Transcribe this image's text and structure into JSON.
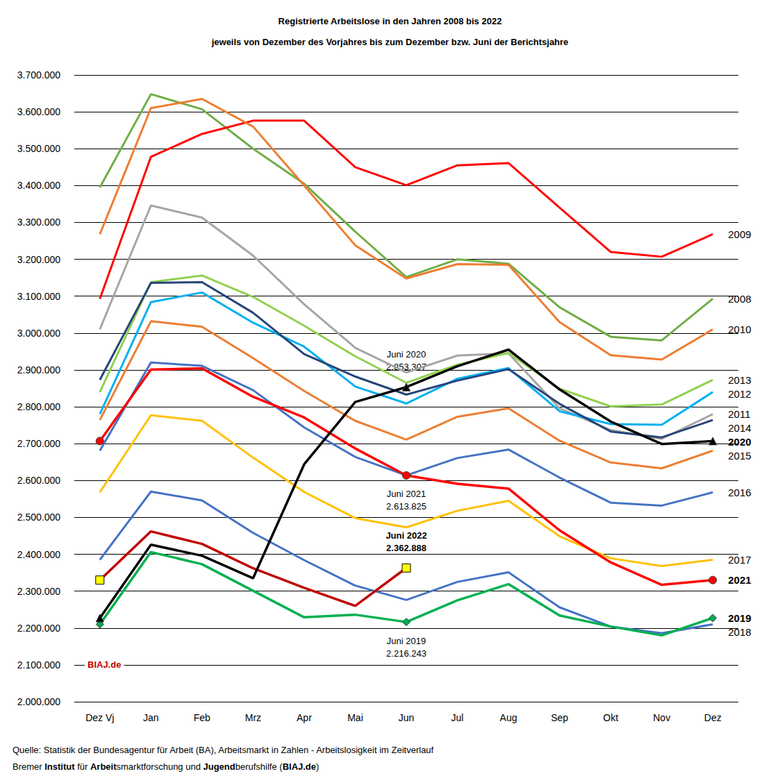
{
  "chart_data": {
    "type": "line",
    "title": [
      "Registrierte Arbeitslose in den Jahren 2008 bis 2022",
      "jeweils von Dezember des Vorjahres bis zum Dezember bzw. Juni der Berichtsjahre"
    ],
    "categories": [
      "Dez Vj",
      "Jan",
      "Feb",
      "Mrz",
      "Apr",
      "Mai",
      "Jun",
      "Jul",
      "Aug",
      "Sep",
      "Okt",
      "Nov",
      "Dez"
    ],
    "ylim": [
      2000000,
      3700000
    ],
    "yticks": [
      {
        "value": 2000000,
        "label": "2.000.000"
      },
      {
        "value": 2100000,
        "label": "2.100.000"
      },
      {
        "value": 2200000,
        "label": "2.200.000"
      },
      {
        "value": 2300000,
        "label": "2.300.000"
      },
      {
        "value": 2400000,
        "label": "2.400.000"
      },
      {
        "value": 2500000,
        "label": "2.500.000"
      },
      {
        "value": 2600000,
        "label": "2.600.000"
      },
      {
        "value": 2700000,
        "label": "2.700.000"
      },
      {
        "value": 2800000,
        "label": "2.800.000"
      },
      {
        "value": 2900000,
        "label": "2.900.000"
      },
      {
        "value": 3000000,
        "label": "3.000.000"
      },
      {
        "value": 3100000,
        "label": "3.100.000"
      },
      {
        "value": 3200000,
        "label": "3.200.000"
      },
      {
        "value": 3300000,
        "label": "3.300.000"
      },
      {
        "value": 3400000,
        "label": "3.400.000"
      },
      {
        "value": 3500000,
        "label": "3.500.000"
      },
      {
        "value": 3600000,
        "label": "3.600.000"
      },
      {
        "value": 3700000,
        "label": "3.700.000"
      }
    ],
    "grid": true,
    "series": [
      {
        "name": "2008",
        "color": "#70ad47",
        "values": [
          3395000,
          3648000,
          3607000,
          3500000,
          3405000,
          3275000,
          3152000,
          3200000,
          3188000,
          3070000,
          2990000,
          2980000,
          3093000
        ]
      },
      {
        "name": "2009",
        "color": "#ff0000",
        "values": [
          3093000,
          3478000,
          3540000,
          3576000,
          3576000,
          3450000,
          3401000,
          3455000,
          3461000,
          3340000,
          3220000,
          3207000,
          3268000
        ]
      },
      {
        "name": "2010",
        "color": "#ed7d31",
        "values": [
          3268000,
          3610000,
          3635000,
          3560000,
          3400000,
          3238000,
          3148000,
          3187000,
          3185000,
          3030000,
          2940000,
          2928000,
          3010000
        ]
      },
      {
        "name": "2011",
        "color": "#a5a5a5",
        "values": [
          3010000,
          3346000,
          3313000,
          3210000,
          3078000,
          2960000,
          2893000,
          2939000,
          2945000,
          2796000,
          2737000,
          2713000,
          2780000
        ]
      },
      {
        "name": "2012",
        "color": "#00b0f0",
        "values": [
          2780000,
          3084000,
          3110000,
          3028000,
          2963000,
          2855000,
          2809000,
          2876000,
          2905000,
          2788000,
          2753000,
          2751000,
          2840000
        ]
      },
      {
        "name": "2013",
        "color": "#92d050",
        "values": [
          2840000,
          3138000,
          3156000,
          3098000,
          3020000,
          2937000,
          2865000,
          2914000,
          2946000,
          2849000,
          2801000,
          2806000,
          2873000
        ]
      },
      {
        "name": "2014",
        "color": "#264478",
        "values": [
          2873000,
          3136000,
          3138000,
          3055000,
          2943000,
          2882000,
          2833000,
          2871000,
          2902000,
          2808000,
          2733000,
          2717000,
          2764000
        ]
      },
      {
        "name": "2015",
        "color": "#ed7d31",
        "values": [
          2764000,
          3032000,
          3017000,
          2932000,
          2843000,
          2762000,
          2711000,
          2773000,
          2796000,
          2708000,
          2649000,
          2633000,
          2681000
        ]
      },
      {
        "name": "2016",
        "color": "#4472c4",
        "values": [
          2681000,
          2920000,
          2911000,
          2845000,
          2744000,
          2664000,
          2614000,
          2661000,
          2684000,
          2608000,
          2540000,
          2532000,
          2568000
        ]
      },
      {
        "name": "2017",
        "color": "#ffc000",
        "values": [
          2568000,
          2777000,
          2762000,
          2662000,
          2569000,
          2498000,
          2473000,
          2518000,
          2545000,
          2449000,
          2389000,
          2368000,
          2385000
        ]
      },
      {
        "name": "2018",
        "color": "#4472c4",
        "values": [
          2385000,
          2570000,
          2546000,
          2458000,
          2384000,
          2315000,
          2276000,
          2325000,
          2351000,
          2256000,
          2204000,
          2186000,
          2210000
        ]
      },
      {
        "name": "2019",
        "color": "#00b050",
        "marker": "diamond",
        "values": [
          2210000,
          2406000,
          2373000,
          2301000,
          2229000,
          2236000,
          2216243,
          2275000,
          2319000,
          2234000,
          2204000,
          2180000,
          2227000
        ]
      },
      {
        "name": "2022",
        "color": "#c00000",
        "marker": "square",
        "values": [
          2330000,
          2462000,
          2428000,
          2362000,
          2309000,
          2260000,
          2362888,
          null,
          null,
          null,
          null,
          null,
          null
        ]
      },
      {
        "name": "2021",
        "color": "#ff0000",
        "marker": "circle",
        "values": [
          2707000,
          2901000,
          2904000,
          2827000,
          2771000,
          2687000,
          2613825,
          2591000,
          2578000,
          2465000,
          2378000,
          2317000,
          2330000
        ]
      },
      {
        "name": "2020",
        "color": "#000000",
        "marker": "triangle",
        "values": [
          2227000,
          2426000,
          2396000,
          2335000,
          2644000,
          2813000,
          2853307,
          2910000,
          2955000,
          2847000,
          2760000,
          2699000,
          2707000
        ]
      }
    ],
    "annotations": [
      {
        "x": "Jun",
        "y": 2853307,
        "text": [
          "Juni 2020",
          "2.853.307"
        ]
      },
      {
        "x": "Jun",
        "y": 2613825,
        "text": [
          "Juni 2021",
          "2.613.825"
        ]
      },
      {
        "x": "Jun",
        "y": 2362888,
        "text": [
          "Juni 2022",
          "2.362.888"
        ]
      },
      {
        "x": "Jun",
        "y": 2216243,
        "text": [
          "Juni 2019",
          "2.216.243"
        ]
      }
    ],
    "watermark": "BIAJ.de",
    "source": [
      [
        "Quelle: Statistik der Bundesagentur für Arbeit (BA), Arbeitsmarkt in Zahlen - Arbeitslosigkeit im Zeitverlauf"
      ],
      [
        "Bremer ",
        "Institut",
        " für ",
        "Arbeit",
        "smarktforschung und ",
        "Jugend",
        "berufshilfe (",
        "BIAJ.de",
        ")"
      ]
    ]
  }
}
